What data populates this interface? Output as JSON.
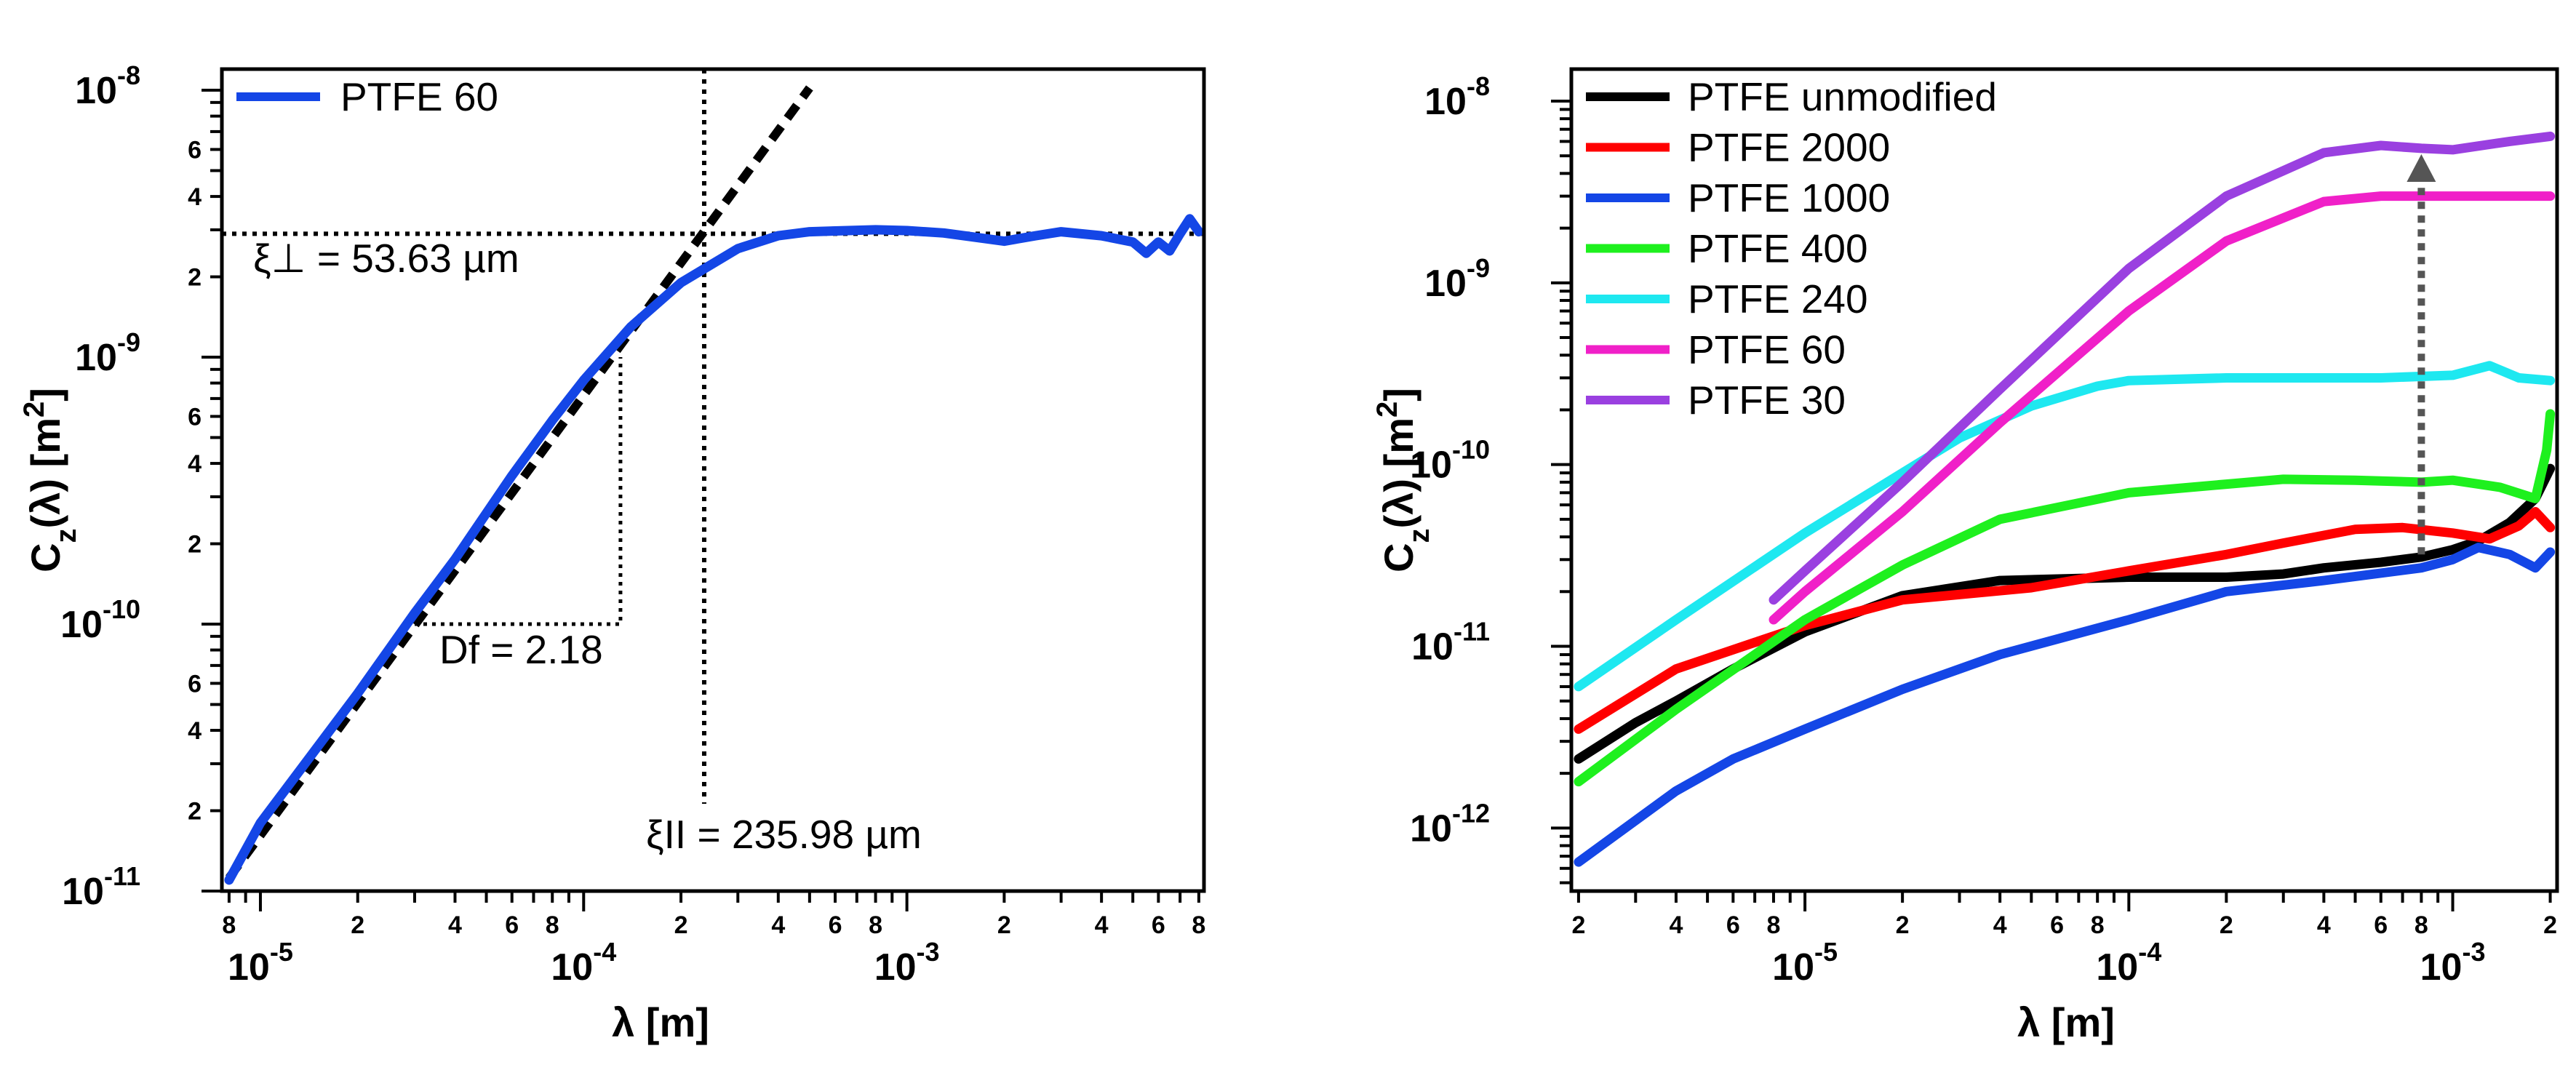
{
  "chart_data": [
    {
      "type": "line",
      "xscale": "log",
      "yscale": "log",
      "xlim": [
        7.6e-06,
        0.0083
      ],
      "ylim": [
        1e-11,
        1.2e-08
      ],
      "xlabel": "λ [m]",
      "ylabel": "Cz(λ) [m2]",
      "grid": false,
      "legend_position": "top-left",
      "x_major_ticks": [
        "10-5",
        "10-4",
        "10-3"
      ],
      "y_major_ticks": [
        "10-11",
        "10-10",
        "10-9",
        "10-8"
      ],
      "series": [
        {
          "name": "PTFE 60",
          "color": "#1446e6",
          "x": [
            8e-06,
            1e-05,
            2e-05,
            3e-05,
            4e-05,
            6e-05,
            8e-05,
            0.0001,
            0.00014,
            0.0002,
            0.0003,
            0.0004,
            0.0005,
            0.0006,
            0.0008,
            0.001,
            0.0013,
            0.002,
            0.0025,
            0.003,
            0.004,
            0.005,
            0.0055,
            0.006,
            0.0065,
            0.007,
            0.0075,
            0.008
          ],
          "y": [
            1.1e-11,
            1.8e-11,
            5.5e-11,
            1.1e-10,
            1.75e-10,
            3.6e-10,
            5.8e-10,
            8.2e-10,
            1.3e-09,
            1.9e-09,
            2.55e-09,
            2.85e-09,
            2.95e-09,
            2.97e-09,
            3e-09,
            2.98e-09,
            2.92e-09,
            2.72e-09,
            2.85e-09,
            2.95e-09,
            2.85e-09,
            2.7e-09,
            2.45e-09,
            2.7e-09,
            2.5e-09,
            2.9e-09,
            3.3e-09,
            2.95e-09
          ]
        }
      ],
      "annotations": {
        "fit_label": "Df = 2.18",
        "xi_perp_label": "ξ⊥ = 53.63 µm",
        "xi_par_label": "ξII = 235.98 µm",
        "xi_perp_value": 2.9e-09,
        "xi_par_value": 0.000236,
        "fit_line": {
          "x": [
            8e-06,
            0.0005
          ],
          "y": [
            1.12e-11,
            1.02e-08
          ]
        },
        "slope_triangle": {
          "x": [
            3e-05,
            0.00013
          ],
          "y": [
            1e-10,
            1e-09
          ]
        }
      }
    },
    {
      "type": "line",
      "xscale": "log",
      "yscale": "log",
      "xlim": [
        1.9e-06,
        0.0021
      ],
      "ylim": [
        4.5e-13,
        1.5e-08
      ],
      "xlabel": "λ [m]",
      "ylabel": "Cz(λ) [m2]",
      "grid": false,
      "legend_position": "top-left",
      "x_major_ticks": [
        "10-5",
        "10-4",
        "10-3"
      ],
      "y_major_ticks": [
        "10-12",
        "10-11",
        "10-10",
        "10-9",
        "10-8"
      ],
      "series": [
        {
          "name": "PTFE unmodified",
          "color": "#000000",
          "x": [
            2e-06,
            3e-06,
            4e-06,
            6e-06,
            1e-05,
            2e-05,
            4e-05,
            0.0001,
            0.0002,
            0.0003,
            0.0004,
            0.0006,
            0.0008,
            0.001,
            0.0012,
            0.0015,
            0.0018,
            0.002
          ],
          "y": [
            2.4e-12,
            3.8e-12,
            5e-12,
            7.5e-12,
            1.2e-11,
            1.9e-11,
            2.3e-11,
            2.4e-11,
            2.4e-11,
            2.5e-11,
            2.7e-11,
            2.9e-11,
            3.1e-11,
            3.4e-11,
            3.8e-11,
            4.8e-11,
            6.5e-11,
            9.5e-11
          ]
        },
        {
          "name": "PTFE 2000",
          "color": "#ff0000",
          "x": [
            2e-06,
            4e-06,
            7e-06,
            1e-05,
            2e-05,
            5e-05,
            0.0001,
            0.0002,
            0.0003,
            0.0005,
            0.0007,
            0.001,
            0.0013,
            0.0016,
            0.0018,
            0.002
          ],
          "y": [
            3.5e-12,
            7.5e-12,
            1.05e-11,
            1.3e-11,
            1.8e-11,
            2.1e-11,
            2.6e-11,
            3.2e-11,
            3.7e-11,
            4.4e-11,
            4.5e-11,
            4.2e-11,
            3.9e-11,
            4.6e-11,
            5.5e-11,
            4.5e-11
          ]
        },
        {
          "name": "PTFE 1000",
          "color": "#1446e6",
          "x": [
            2e-06,
            4e-06,
            6e-06,
            1e-05,
            2e-05,
            4e-05,
            0.0001,
            0.0002,
            0.0004,
            0.0008,
            0.001,
            0.0012,
            0.0015,
            0.0018,
            0.002
          ],
          "y": [
            6.5e-13,
            1.6e-12,
            2.4e-12,
            3.5e-12,
            5.8e-12,
            9e-12,
            1.4e-11,
            2e-11,
            2.3e-11,
            2.7e-11,
            3e-11,
            3.5e-11,
            3.2e-11,
            2.7e-11,
            3.3e-11
          ]
        },
        {
          "name": "PTFE 400",
          "color": "#1ef01e",
          "x": [
            2e-06,
            4e-06,
            1e-05,
            2e-05,
            4e-05,
            0.0001,
            0.0002,
            0.0003,
            0.0005,
            0.0008,
            0.001,
            0.0014,
            0.0018,
            0.00195,
            0.002
          ],
          "y": [
            1.8e-12,
            4.5e-12,
            1.4e-11,
            2.8e-11,
            5e-11,
            7e-11,
            7.8e-11,
            8.3e-11,
            8.2e-11,
            8e-11,
            8.2e-11,
            7.5e-11,
            6.5e-11,
            1.2e-10,
            1.9e-10
          ]
        },
        {
          "name": "PTFE 240",
          "color": "#1ee8f0",
          "x": [
            2e-06,
            4e-06,
            1e-05,
            2e-05,
            3e-05,
            5e-05,
            8e-05,
            0.0001,
            0.0002,
            0.0004,
            0.0006,
            0.001,
            0.0013,
            0.0016,
            0.002
          ],
          "y": [
            6e-12,
            1.4e-11,
            4.2e-11,
            9e-11,
            1.4e-10,
            2.1e-10,
            2.7e-10,
            2.9e-10,
            3e-10,
            3e-10,
            3e-10,
            3.1e-10,
            3.5e-10,
            3e-10,
            2.9e-10
          ]
        },
        {
          "name": "PTFE 60",
          "color": "#f020c8",
          "x": [
            8e-06,
            1e-05,
            2e-05,
            4e-05,
            0.0001,
            0.0002,
            0.0004,
            0.0006,
            0.001,
            0.0015,
            0.002
          ],
          "y": [
            1.4e-11,
            2e-11,
            5.5e-11,
            1.7e-10,
            7e-10,
            1.7e-09,
            2.8e-09,
            3e-09,
            3e-09,
            3e-09,
            3e-09
          ]
        },
        {
          "name": "PTFE 30",
          "color": "#9a40e0",
          "x": [
            8e-06,
            1e-05,
            2e-05,
            4e-05,
            0.0001,
            0.0002,
            0.0004,
            0.0006,
            0.0008,
            0.001,
            0.0015,
            0.002
          ],
          "y": [
            1.8e-11,
            2.6e-11,
            8e-11,
            2.6e-10,
            1.2e-09,
            3e-09,
            5.2e-09,
            5.7e-09,
            5.5e-09,
            5.4e-09,
            6e-09,
            6.4e-09
          ]
        }
      ],
      "annotations": {
        "arrow": {
          "x": 0.0008,
          "y_from": 3.2e-11,
          "y_to": 5.2e-09,
          "color": "#555555"
        }
      }
    }
  ]
}
